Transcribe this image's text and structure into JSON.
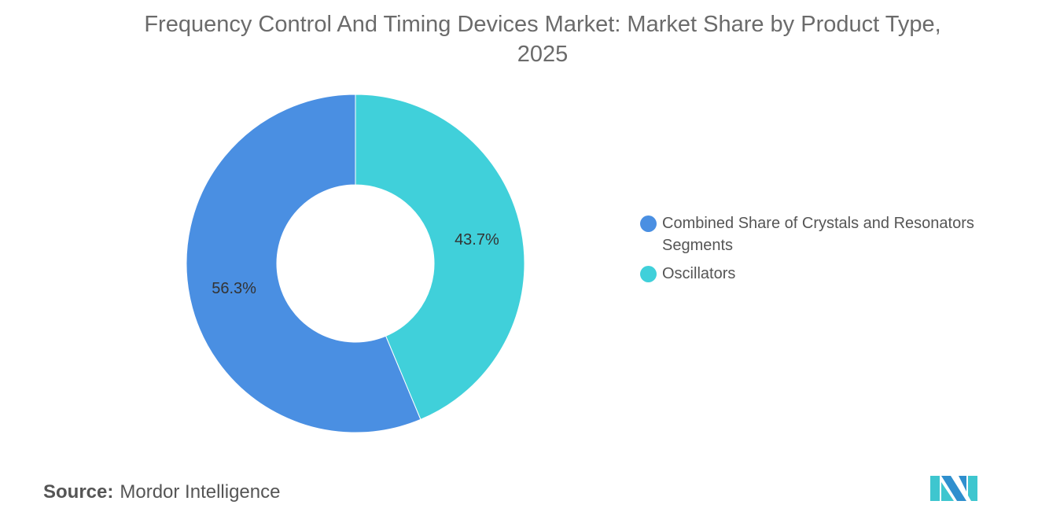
{
  "title": "Frequency Control And Timing Devices Market: Market Share by Product Type, 2025",
  "source_label": "Source:",
  "source_value": "Mordor Intelligence",
  "logo_text": "Mordor Intelligence",
  "chart_data": {
    "type": "pie",
    "variant": "donut",
    "title": "Frequency Control And Timing Devices Market: Market Share by Product Type, 2025",
    "legend_position": "right",
    "series": [
      {
        "name": "Combined Share of Crystals and Resonators Segments",
        "value": 56.3,
        "label": "56.3%",
        "color": "#4a8fe2"
      },
      {
        "name": "Oscillators",
        "value": 43.7,
        "label": "43.7%",
        "color": "#40d0da"
      }
    ]
  }
}
